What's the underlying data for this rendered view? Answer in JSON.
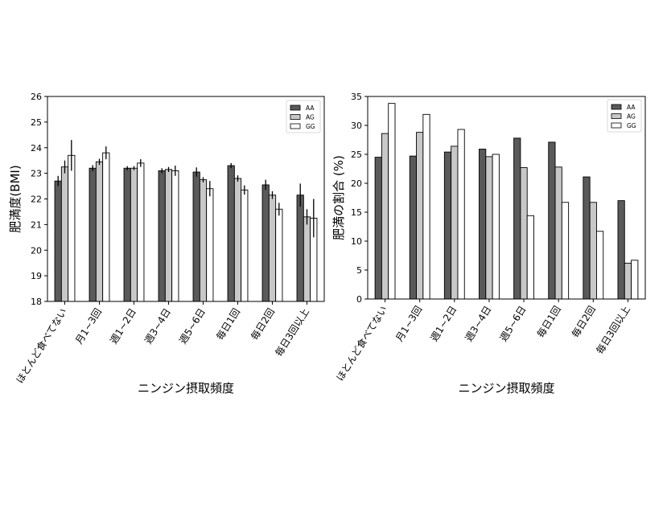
{
  "chart_data": [
    {
      "type": "bar",
      "ylabel": "肥満度(BMI)",
      "xlabel": "ニンジン摂取頻度",
      "ylim": [
        18,
        26
      ],
      "yticks": [
        18,
        19,
        20,
        21,
        22,
        23,
        24,
        25,
        26
      ],
      "legend_position": "top-right",
      "categories": [
        "ほとんど食べてない",
        "月1~3回",
        "週1~2日",
        "週3~4日",
        "週5~6日",
        "毎日1回",
        "毎日2回",
        "毎日3回以上"
      ],
      "series": [
        {
          "name": "AA",
          "color": "#5a5a5a",
          "values": [
            22.7,
            23.2,
            23.2,
            23.1,
            23.05,
            23.3,
            22.55,
            22.15
          ],
          "errors": [
            0.2,
            0.12,
            0.08,
            0.1,
            0.18,
            0.1,
            0.2,
            0.45
          ]
        },
        {
          "name": "AG",
          "color": "#c8c8c8",
          "values": [
            23.25,
            23.45,
            23.2,
            23.15,
            22.75,
            22.8,
            22.15,
            21.3
          ],
          "errors": [
            0.25,
            0.12,
            0.08,
            0.1,
            0.1,
            0.12,
            0.15,
            0.3
          ]
        },
        {
          "name": "GG",
          "color": "#ffffff",
          "values": [
            23.7,
            23.8,
            23.4,
            23.1,
            22.4,
            22.35,
            21.6,
            21.25
          ],
          "errors": [
            0.6,
            0.25,
            0.15,
            0.2,
            0.3,
            0.18,
            0.25,
            0.75
          ]
        }
      ]
    },
    {
      "type": "bar",
      "ylabel": "肥満の割合 (%)",
      "xlabel": "ニンジン摂取頻度",
      "ylim": [
        0,
        35
      ],
      "yticks": [
        0,
        5,
        10,
        15,
        20,
        25,
        30,
        35
      ],
      "legend_position": "top-right",
      "categories": [
        "ほとんど食べてない",
        "月1~3回",
        "週1~2日",
        "週3~4日",
        "週5~6日",
        "毎日1回",
        "毎日2回",
        "毎日3回以上"
      ],
      "series": [
        {
          "name": "AA",
          "color": "#5a5a5a",
          "values": [
            24.5,
            24.7,
            25.4,
            25.9,
            27.8,
            27.1,
            21.1,
            17.0
          ]
        },
        {
          "name": "AG",
          "color": "#c8c8c8",
          "values": [
            28.6,
            28.8,
            26.4,
            24.6,
            22.7,
            22.8,
            16.7,
            6.2
          ]
        },
        {
          "name": "GG",
          "color": "#ffffff",
          "values": [
            33.8,
            31.9,
            29.3,
            25.0,
            14.4,
            16.7,
            11.7,
            6.7
          ]
        }
      ]
    }
  ]
}
